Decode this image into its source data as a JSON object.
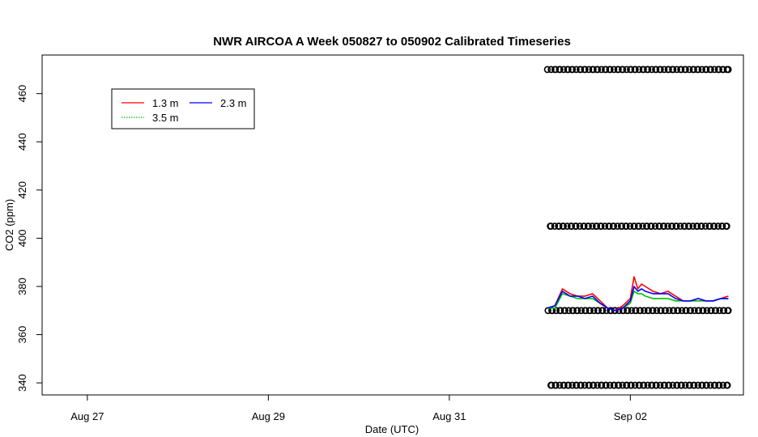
{
  "chart_data": {
    "type": "line",
    "title": "NWR AIRCOA A  Week 050827 to 050902  Calibrated Timeseries",
    "xlabel": "Date (UTC)",
    "ylabel": "CO2 (ppm)",
    "x_ticks": [
      "Aug 27",
      "Aug 29",
      "Aug 31",
      "Sep 02"
    ],
    "y_ticks": [
      "340",
      "360",
      "380",
      "400",
      "420",
      "440",
      "460"
    ],
    "xlim": [
      "2005-08-26 12:00",
      "2005-09-03 06:00"
    ],
    "ylim": [
      335,
      476
    ],
    "grid": false,
    "legend_position": "top-left",
    "legend": [
      "1.3 m",
      "2.3 m",
      "3.5 m"
    ],
    "series": [
      {
        "name": "1.3 m",
        "color": "#ff0000",
        "x": [
          "2005-09-01 02:00",
          "2005-09-01 04:00",
          "2005-09-01 06:00",
          "2005-09-01 08:00",
          "2005-09-01 10:00",
          "2005-09-01 12:00",
          "2005-09-01 14:00",
          "2005-09-01 16:00",
          "2005-09-01 18:00",
          "2005-09-01 20:00",
          "2005-09-01 22:00",
          "2005-09-02 00:00",
          "2005-09-02 01:00",
          "2005-09-02 02:00",
          "2005-09-02 03:00",
          "2005-09-02 04:00",
          "2005-09-02 06:00",
          "2005-09-02 08:00",
          "2005-09-02 10:00",
          "2005-09-02 12:00",
          "2005-09-02 14:00",
          "2005-09-02 16:00",
          "2005-09-02 18:00",
          "2005-09-02 20:00",
          "2005-09-02 22:00",
          "2005-09-03 00:00",
          "2005-09-03 02:00"
        ],
        "values": [
          371,
          372,
          379,
          377,
          376,
          376,
          377,
          374,
          371,
          370,
          372,
          375,
          384,
          379,
          381,
          380,
          378,
          377,
          378,
          376,
          374,
          374,
          375,
          374,
          374,
          375,
          376
        ]
      },
      {
        "name": "2.3 m",
        "color": "#0000ff",
        "x": [
          "2005-09-01 02:00",
          "2005-09-01 04:00",
          "2005-09-01 06:00",
          "2005-09-01 08:00",
          "2005-09-01 10:00",
          "2005-09-01 12:00",
          "2005-09-01 14:00",
          "2005-09-01 16:00",
          "2005-09-01 18:00",
          "2005-09-01 20:00",
          "2005-09-01 22:00",
          "2005-09-02 00:00",
          "2005-09-02 01:00",
          "2005-09-02 02:00",
          "2005-09-02 03:00",
          "2005-09-02 04:00",
          "2005-09-02 06:00",
          "2005-09-02 08:00",
          "2005-09-02 10:00",
          "2005-09-02 12:00",
          "2005-09-02 14:00",
          "2005-09-02 16:00",
          "2005-09-02 18:00",
          "2005-09-02 20:00",
          "2005-09-02 22:00",
          "2005-09-03 00:00",
          "2005-09-03 02:00"
        ],
        "values": [
          371,
          372,
          378,
          376,
          376,
          375,
          376,
          373,
          371,
          370,
          371,
          374,
          380,
          378,
          379,
          378,
          377,
          377,
          377,
          375,
          374,
          374,
          375,
          374,
          374,
          375,
          375
        ]
      },
      {
        "name": "3.5 m",
        "color": "#00c000",
        "x": [
          "2005-09-01 02:00",
          "2005-09-01 04:00",
          "2005-09-01 06:00",
          "2005-09-01 08:00",
          "2005-09-01 10:00",
          "2005-09-01 12:00",
          "2005-09-01 14:00",
          "2005-09-01 16:00",
          "2005-09-01 18:00",
          "2005-09-01 20:00",
          "2005-09-01 22:00",
          "2005-09-02 00:00",
          "2005-09-02 01:00",
          "2005-09-02 02:00",
          "2005-09-02 03:00",
          "2005-09-02 04:00",
          "2005-09-02 06:00",
          "2005-09-02 08:00",
          "2005-09-02 10:00",
          "2005-09-02 12:00",
          "2005-09-02 14:00",
          "2005-09-02 16:00",
          "2005-09-02 18:00",
          "2005-09-02 20:00",
          "2005-09-02 22:00",
          "2005-09-03 00:00",
          "2005-09-03 02:00"
        ],
        "values": [
          371,
          371,
          377,
          376,
          375,
          375,
          375,
          373,
          371,
          370,
          371,
          373,
          378,
          377,
          377,
          376,
          375,
          375,
          375,
          374,
          374,
          374,
          374,
          374,
          374,
          375,
          375
        ]
      }
    ],
    "reference_points": {
      "marker": "o",
      "color": "#000000",
      "start": "2005-09-01 02:00",
      "end": "2005-09-03 02:00",
      "levels": [
        470,
        405,
        370,
        339
      ]
    }
  }
}
